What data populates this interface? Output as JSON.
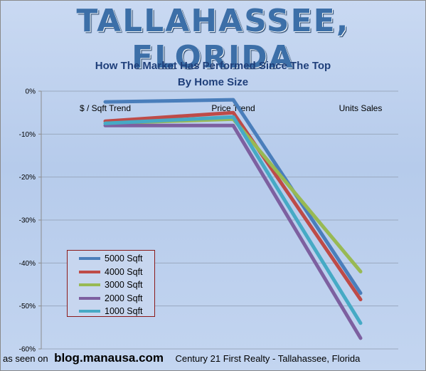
{
  "banner": "TALLAHASSEE, FLORIDA",
  "title_line1": "How The Market Has Performed Since The Top",
  "title_line2": "By Home Size",
  "footer": {
    "prefix": "as seen on",
    "site": "blog.manausa.com",
    "credit": "Century 21  First Realty - Tallahassee, Florida"
  },
  "chart_data": {
    "type": "line",
    "title": "How The Market Has Performed Since The Top",
    "subtitle": "By Home Size",
    "categories": [
      "$ / Sqft Trend",
      "Price Trend",
      "Units Sales"
    ],
    "ylim": [
      -60,
      0
    ],
    "yticks": [
      0,
      -10,
      -20,
      -30,
      -40,
      -50,
      -60
    ],
    "ytick_labels": [
      "0%",
      "-10%",
      "-20%",
      "-30%",
      "-40%",
      "-50%",
      "-60%"
    ],
    "grid": true,
    "legend_position": "lower-left",
    "series": [
      {
        "name": "5000 Sqft",
        "color": "#4a7ebb",
        "values": [
          -2.5,
          -2,
          -47
        ]
      },
      {
        "name": "4000 Sqft",
        "color": "#be4b48",
        "values": [
          -7,
          -5,
          -48.5
        ]
      },
      {
        "name": "3000 Sqft",
        "color": "#98b954",
        "values": [
          -7.5,
          -6.5,
          -42
        ]
      },
      {
        "name": "2000 Sqft",
        "color": "#7d60a0",
        "values": [
          -8,
          -8,
          -57.5
        ]
      },
      {
        "name": "1000 Sqft",
        "color": "#46aac5",
        "values": [
          -7.5,
          -6,
          -54
        ]
      }
    ]
  }
}
